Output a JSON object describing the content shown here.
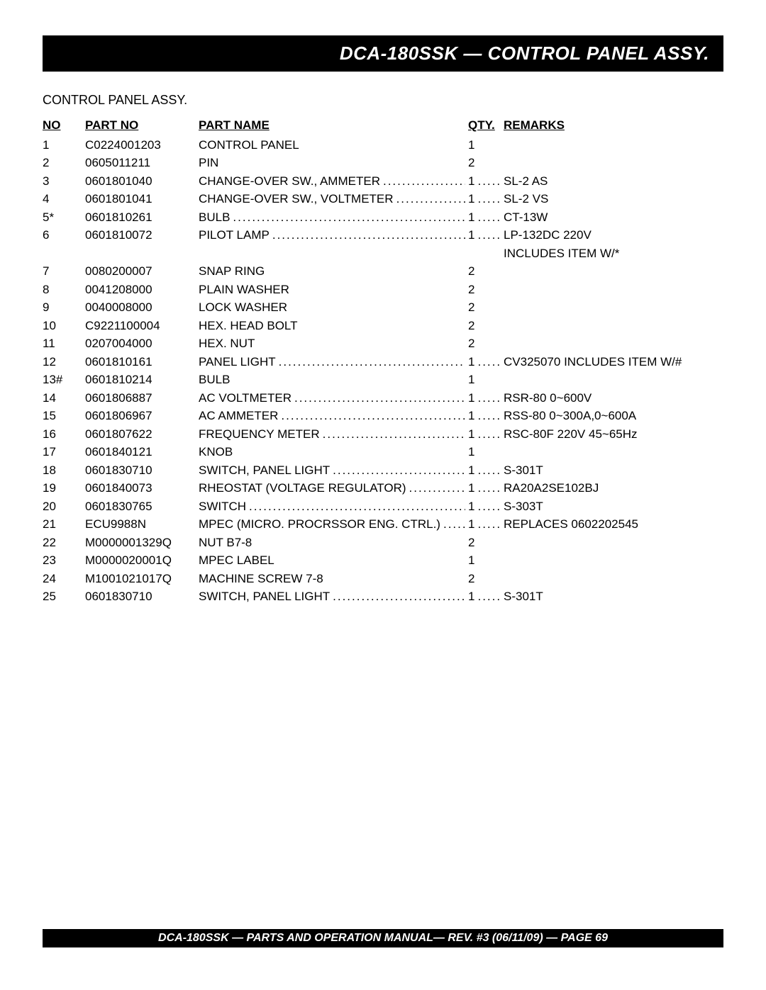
{
  "title": "DCA-180SSK — CONTROL PANEL ASSY.",
  "subtitle": "CONTROL PANEL ASSY.",
  "headers": {
    "no": "NO",
    "partno": "PART NO",
    "partname": "PART NAME",
    "qty": "QTY.",
    "remarks": "REMARKS"
  },
  "footer": "DCA-180SSK — PARTS AND OPERATION  MANUAL— REV. #3  (06/11/09) — PAGE 69",
  "rows": [
    {
      "no": "1",
      "partno": "C0224001203",
      "partname": "CONTROL PANEL",
      "qty": "1",
      "remarks": "",
      "has_dots": false,
      "has_qty_dots": false
    },
    {
      "no": "2",
      "partno": "0605011211",
      "partname": "PIN",
      "qty": "2",
      "remarks": "",
      "has_dots": false,
      "has_qty_dots": false
    },
    {
      "no": "3",
      "partno": "0601801040",
      "partname": "CHANGE-OVER SW., AMMETER",
      "qty": "1",
      "remarks": "SL-2 AS",
      "has_dots": true,
      "has_qty_dots": true
    },
    {
      "no": "4",
      "partno": "0601801041",
      "partname": "CHANGE-OVER SW., VOLTMETER",
      "qty": "1",
      "remarks": "SL-2 VS",
      "has_dots": true,
      "has_qty_dots": true
    },
    {
      "no": "5*",
      "partno": "0601810261",
      "partname": "BULB",
      "qty": "1",
      "remarks": "CT-13W",
      "has_dots": true,
      "has_qty_dots": true
    },
    {
      "no": "6",
      "partno": "0601810072",
      "partname": "PILOT LAMP",
      "qty": "1",
      "remarks": "LP-132DC 220V",
      "has_dots": true,
      "has_qty_dots": true
    },
    {
      "no": "",
      "partno": "",
      "partname": "",
      "qty": "",
      "remarks": "INCLUDES ITEM W/*",
      "has_dots": false,
      "has_qty_dots": false,
      "continuation": true
    },
    {
      "no": "7",
      "partno": "0080200007",
      "partname": "SNAP RING",
      "qty": "2",
      "remarks": "",
      "has_dots": false,
      "has_qty_dots": false
    },
    {
      "no": "8",
      "partno": "0041208000",
      "partname": "PLAIN WASHER",
      "qty": "2",
      "remarks": "",
      "has_dots": false,
      "has_qty_dots": false
    },
    {
      "no": "9",
      "partno": "0040008000",
      "partname": "LOCK WASHER",
      "qty": "2",
      "remarks": "",
      "has_dots": false,
      "has_qty_dots": false
    },
    {
      "no": "10",
      "partno": "C9221100004",
      "partname": "HEX. HEAD BOLT",
      "qty": "2",
      "remarks": "",
      "has_dots": false,
      "has_qty_dots": false
    },
    {
      "no": "11",
      "partno": "0207004000",
      "partname": "HEX. NUT",
      "qty": "2",
      "remarks": "",
      "has_dots": false,
      "has_qty_dots": false
    },
    {
      "no": "12",
      "partno": "0601810161",
      "partname": "PANEL LIGHT",
      "qty": "1",
      "remarks": "CV325070 INCLUDES ITEM W/#",
      "has_dots": true,
      "has_qty_dots": true
    },
    {
      "no": "13#",
      "partno": "0601810214",
      "partname": "BULB",
      "qty": "1",
      "remarks": "",
      "has_dots": false,
      "has_qty_dots": false
    },
    {
      "no": "14",
      "partno": "0601806887",
      "partname": "AC VOLTMETER",
      "qty": "1",
      "remarks": "RSR-80 0~600V",
      "has_dots": true,
      "has_qty_dots": true
    },
    {
      "no": "15",
      "partno": "0601806967",
      "partname": "AC AMMETER",
      "qty": "1",
      "remarks": "RSS-80 0~300A,0~600A",
      "has_dots": true,
      "has_qty_dots": true
    },
    {
      "no": "16",
      "partno": "0601807622",
      "partname": "FREQUENCY METER",
      "qty": "1",
      "remarks": "RSC-80F 220V 45~65Hz",
      "has_dots": true,
      "has_qty_dots": true
    },
    {
      "no": "17",
      "partno": "0601840121",
      "partname": "KNOB",
      "qty": "1",
      "remarks": "",
      "has_dots": false,
      "has_qty_dots": false
    },
    {
      "no": "18",
      "partno": "0601830710",
      "partname": "SWITCH, PANEL LIGHT",
      "qty": "1",
      "remarks": "S-301T",
      "has_dots": true,
      "has_qty_dots": true
    },
    {
      "no": "19",
      "partno": "0601840073",
      "partname": "RHEOSTAT (VOLTAGE REGULATOR)",
      "qty": "1",
      "remarks": "RA20A2SE102BJ",
      "has_dots": true,
      "has_qty_dots": true
    },
    {
      "no": "20",
      "partno": "0601830765",
      "partname": "SWITCH",
      "qty": "1",
      "remarks": "S-303T",
      "has_dots": true,
      "has_qty_dots": true
    },
    {
      "no": "21",
      "partno": "ECU9988N",
      "partname": "MPEC (MICRO. PROCRSSOR ENG. CTRL.)",
      "qty": "1",
      "remarks": "REPLACES 0602202545",
      "has_dots": true,
      "has_qty_dots": true
    },
    {
      "no": "22",
      "partno": "M0000001329Q",
      "partname": "NUT B7-8",
      "qty": "2",
      "remarks": "",
      "has_dots": false,
      "has_qty_dots": false
    },
    {
      "no": "23",
      "partno": "M0000020001Q",
      "partname": "MPEC LABEL",
      "qty": "1",
      "remarks": "",
      "has_dots": false,
      "has_qty_dots": false
    },
    {
      "no": "24",
      "partno": "M1001021017Q",
      "partname": "MACHINE SCREW 7-8",
      "qty": "2",
      "remarks": "",
      "has_dots": false,
      "has_qty_dots": false
    },
    {
      "no": "25",
      "partno": "0601830710",
      "partname": "SWITCH, PANEL LIGHT",
      "qty": "1",
      "remarks": "S-301T",
      "has_dots": true,
      "has_qty_dots": true
    }
  ]
}
